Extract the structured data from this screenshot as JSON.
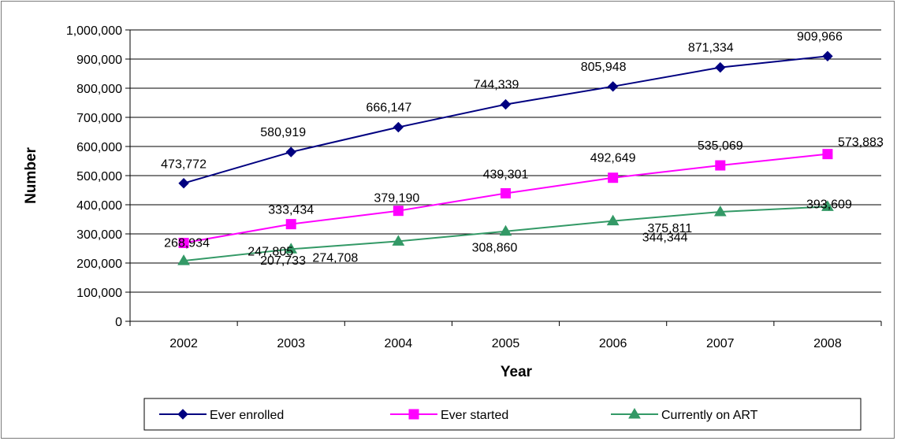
{
  "chart_data": {
    "type": "line",
    "title": "",
    "xlabel": "Year",
    "ylabel": "Number",
    "categories": [
      "2002",
      "2003",
      "2004",
      "2005",
      "2006",
      "2007",
      "2008"
    ],
    "ylim": [
      0,
      1000000
    ],
    "yticks": [
      0,
      100000,
      200000,
      300000,
      400000,
      500000,
      600000,
      700000,
      800000,
      900000,
      1000000
    ],
    "ytick_labels": [
      "0",
      "100,000",
      "200,000",
      "300,000",
      "400,000",
      "500,000",
      "600,000",
      "700,000",
      "800,000",
      "900,000",
      "1,000,000"
    ],
    "grid": "horizontal",
    "legend_position": "bottom",
    "series": [
      {
        "name": "Ever enrolled",
        "color": "#000080",
        "marker": "diamond",
        "values": [
          473772,
          580919,
          666147,
          744339,
          805948,
          871334,
          909966
        ],
        "labels": [
          "473,772",
          "580,919",
          "666,147",
          "744,339",
          "805,948",
          "871,334",
          "909,966"
        ]
      },
      {
        "name": "Ever started",
        "color": "#ff00ff",
        "marker": "square",
        "values": [
          268934,
          333434,
          379190,
          439301,
          492649,
          535069,
          573883
        ],
        "labels": [
          "268,934",
          "333,434",
          "379,190",
          "439,301",
          "492,649",
          "535,069",
          "573,883"
        ]
      },
      {
        "name": "Currently on ART",
        "color": "#339966",
        "marker": "triangle",
        "values": [
          207733,
          247805,
          274708,
          308860,
          344344,
          375811,
          393609
        ],
        "labels": [
          "207,733",
          "247,805",
          "274,708",
          "308,860",
          "344,344",
          "375,811",
          "393,609"
        ]
      }
    ]
  }
}
